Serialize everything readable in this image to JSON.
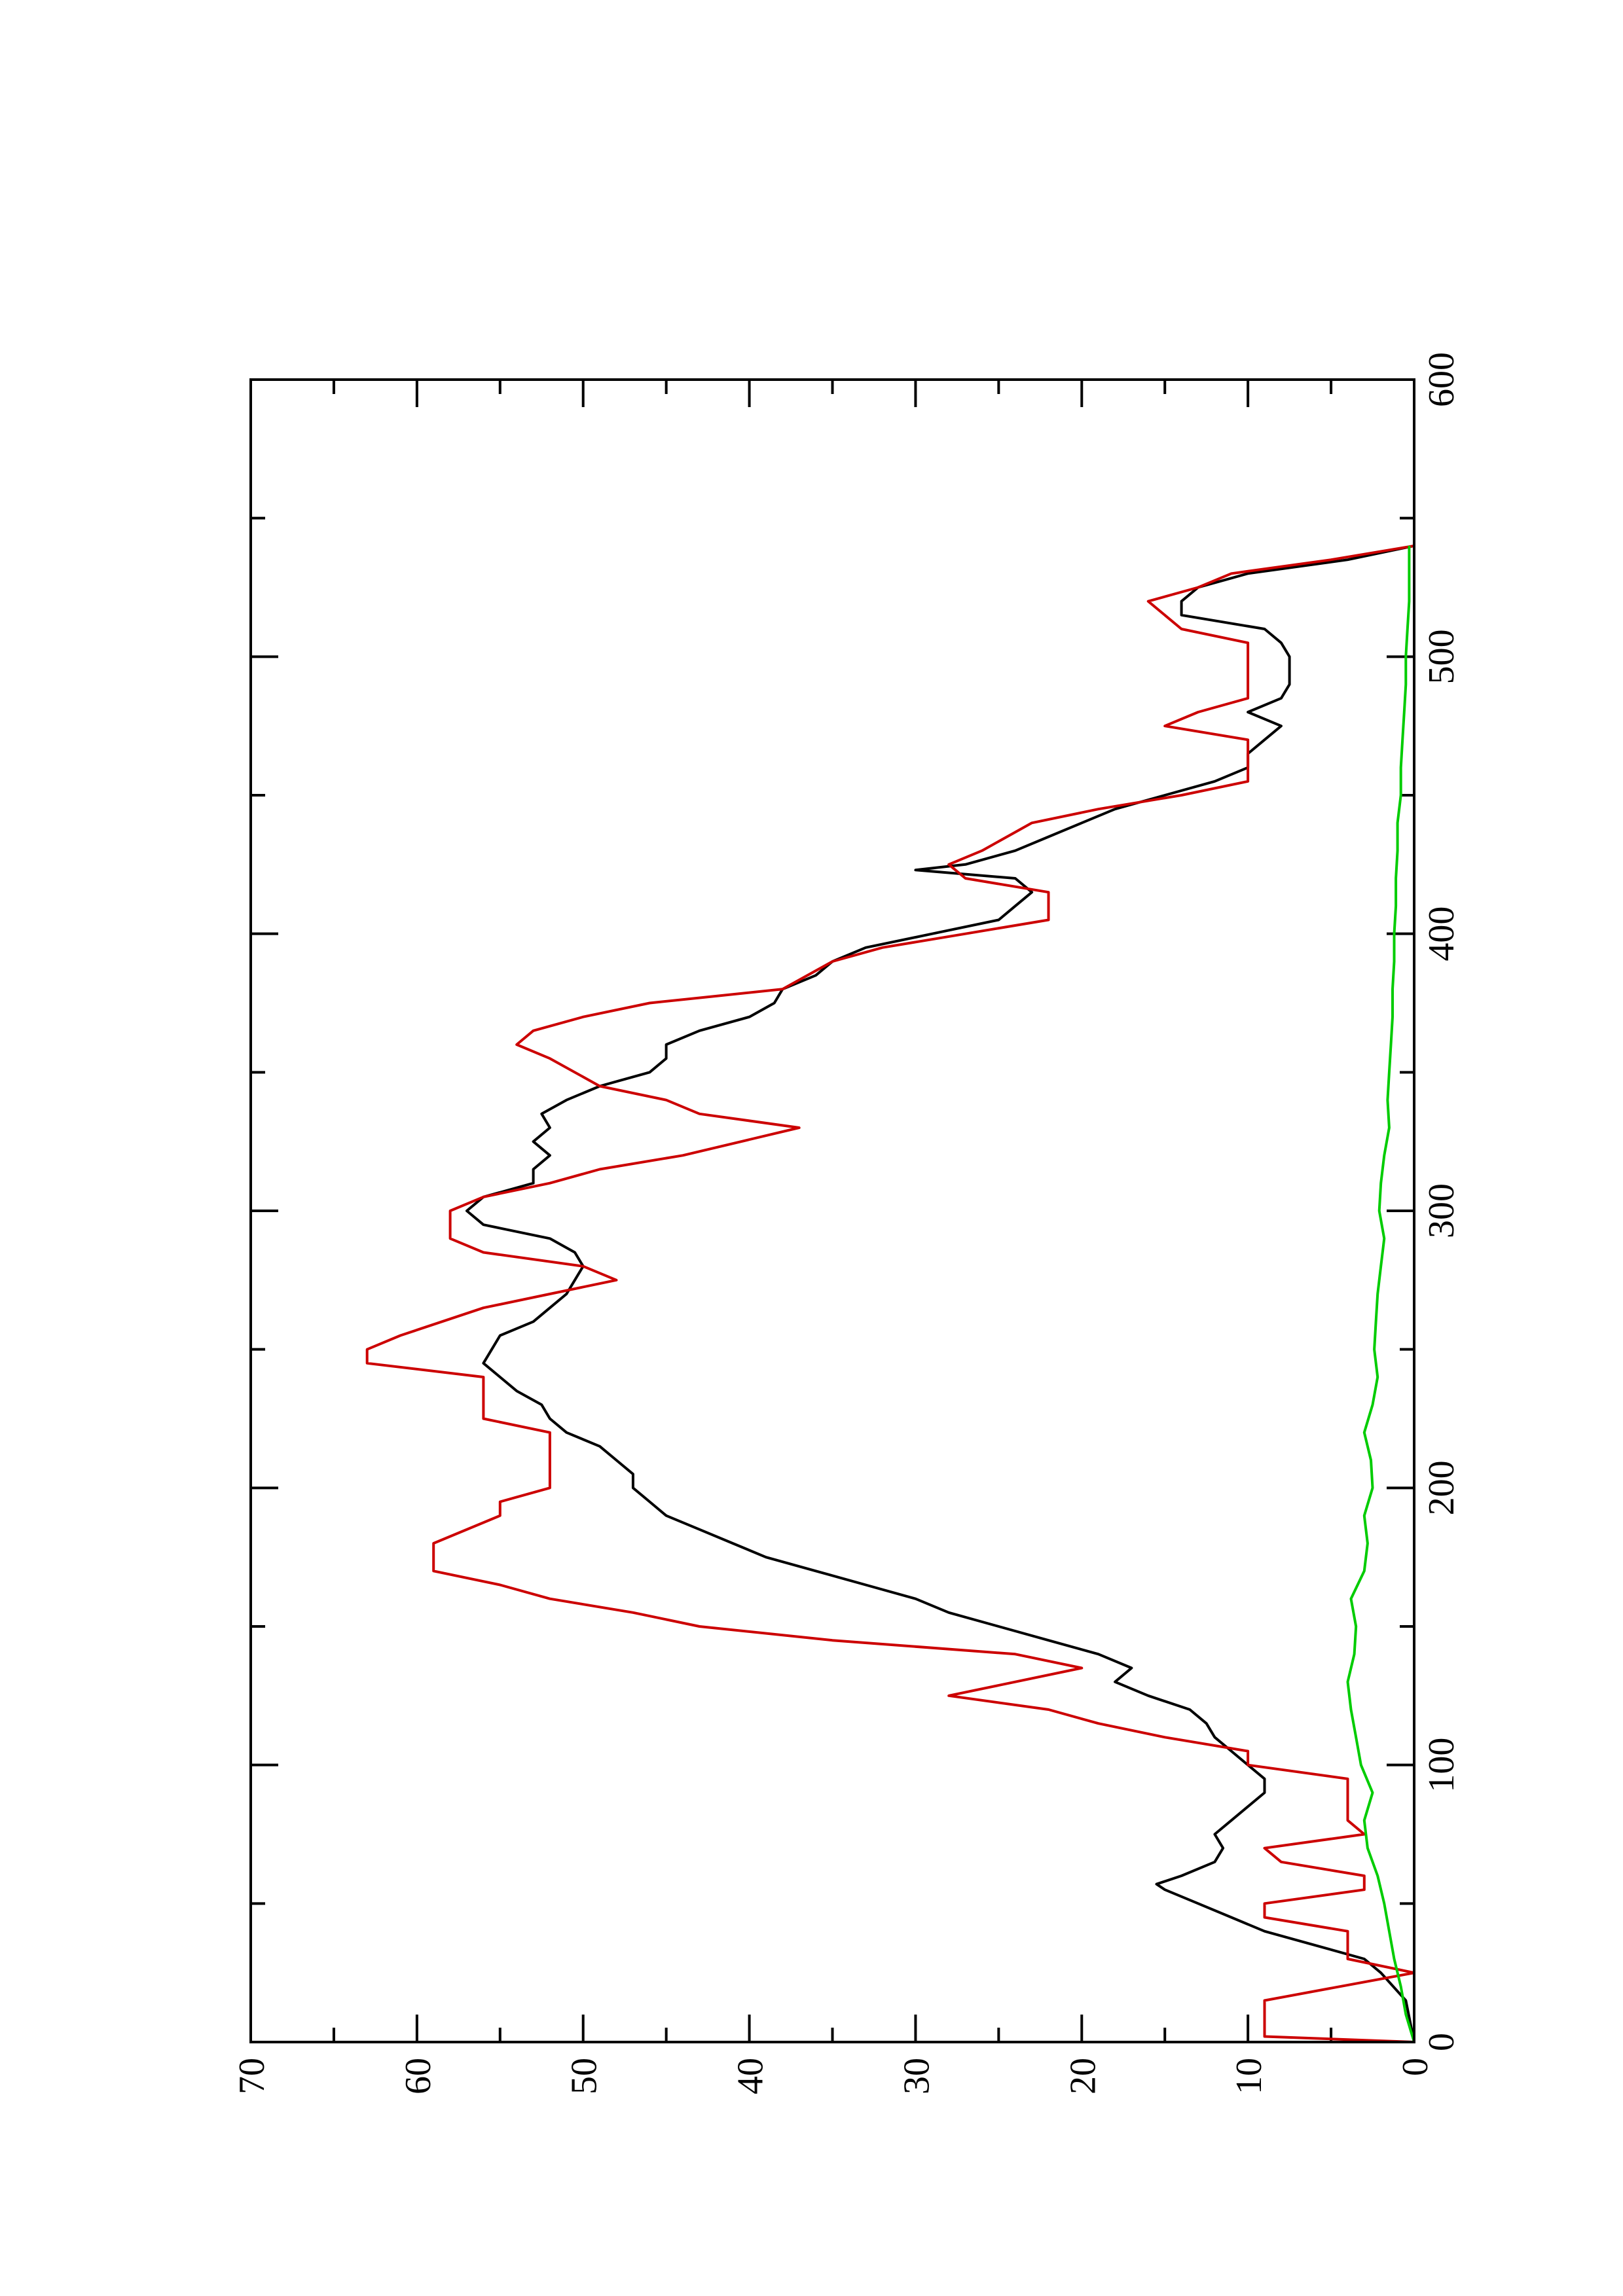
{
  "chart_data": {
    "type": "line",
    "title": "",
    "xlabel": "",
    "ylabel": "",
    "orientation": "rotated 90 degrees counter-clockwise",
    "xlim": [
      0,
      600
    ],
    "ylim": [
      0,
      70
    ],
    "x_ticks": [
      0,
      100,
      200,
      300,
      400,
      500,
      600
    ],
    "y_ticks": [
      0,
      10,
      20,
      30,
      40,
      50,
      60,
      70
    ],
    "x_tick_labels": [
      "0",
      "100",
      "200",
      "300",
      "400",
      "500",
      "600"
    ],
    "y_tick_labels": [
      "0",
      "10",
      "20",
      "30",
      "40",
      "50",
      "60",
      "70"
    ],
    "grid": false,
    "legend": "none",
    "series": [
      {
        "color": "#000000",
        "points": [
          [
            0,
            0
          ],
          [
            15,
            0.5
          ],
          [
            25,
            2
          ],
          [
            30,
            3
          ],
          [
            35,
            6
          ],
          [
            40,
            9
          ],
          [
            45,
            11
          ],
          [
            50,
            13
          ],
          [
            55,
            15
          ],
          [
            57,
            15.5
          ],
          [
            60,
            14
          ],
          [
            65,
            12
          ],
          [
            70,
            11.5
          ],
          [
            75,
            12
          ],
          [
            80,
            11
          ],
          [
            85,
            10
          ],
          [
            90,
            9
          ],
          [
            95,
            9
          ],
          [
            100,
            10
          ],
          [
            105,
            11
          ],
          [
            110,
            12
          ],
          [
            115,
            12.5
          ],
          [
            120,
            13.5
          ],
          [
            125,
            16
          ],
          [
            130,
            18
          ],
          [
            135,
            17
          ],
          [
            140,
            19
          ],
          [
            145,
            22
          ],
          [
            150,
            25
          ],
          [
            155,
            28
          ],
          [
            160,
            30
          ],
          [
            165,
            33
          ],
          [
            170,
            36
          ],
          [
            175,
            39
          ],
          [
            180,
            41
          ],
          [
            185,
            43
          ],
          [
            190,
            45
          ],
          [
            195,
            46
          ],
          [
            200,
            47
          ],
          [
            205,
            47
          ],
          [
            210,
            48
          ],
          [
            215,
            49
          ],
          [
            220,
            51
          ],
          [
            225,
            52
          ],
          [
            230,
            52.5
          ],
          [
            235,
            54
          ],
          [
            240,
            55
          ],
          [
            245,
            56
          ],
          [
            250,
            55.5
          ],
          [
            255,
            55
          ],
          [
            260,
            53
          ],
          [
            265,
            52
          ],
          [
            270,
            51
          ],
          [
            275,
            50.5
          ],
          [
            280,
            50
          ],
          [
            285,
            50.5
          ],
          [
            290,
            52
          ],
          [
            295,
            56
          ],
          [
            300,
            57
          ],
          [
            305,
            56
          ],
          [
            310,
            53
          ],
          [
            315,
            53
          ],
          [
            320,
            52
          ],
          [
            325,
            53
          ],
          [
            330,
            52
          ],
          [
            335,
            52.5
          ],
          [
            340,
            51
          ],
          [
            345,
            49
          ],
          [
            350,
            46
          ],
          [
            355,
            45
          ],
          [
            360,
            45
          ],
          [
            365,
            43
          ],
          [
            370,
            40
          ],
          [
            375,
            38.5
          ],
          [
            380,
            38
          ],
          [
            385,
            36
          ],
          [
            390,
            35
          ],
          [
            395,
            33
          ],
          [
            400,
            29
          ],
          [
            405,
            25
          ],
          [
            410,
            24
          ],
          [
            415,
            23
          ],
          [
            420,
            24
          ],
          [
            423,
            30
          ],
          [
            425,
            27
          ],
          [
            430,
            24
          ],
          [
            435,
            22
          ],
          [
            440,
            20
          ],
          [
            445,
            18
          ],
          [
            450,
            15
          ],
          [
            455,
            12
          ],
          [
            460,
            10
          ],
          [
            465,
            10
          ],
          [
            470,
            9
          ],
          [
            475,
            8
          ],
          [
            480,
            10
          ],
          [
            485,
            8
          ],
          [
            490,
            7.5
          ],
          [
            495,
            7.5
          ],
          [
            500,
            7.5
          ],
          [
            505,
            8
          ],
          [
            510,
            9
          ],
          [
            515,
            14
          ],
          [
            520,
            14
          ],
          [
            525,
            13
          ],
          [
            530,
            10
          ],
          [
            535,
            4
          ],
          [
            540,
            0
          ]
        ]
      },
      {
        "color": "#cc0000",
        "points": [
          [
            0,
            0
          ],
          [
            2,
            9
          ],
          [
            15,
            9
          ],
          [
            25,
            0
          ],
          [
            30,
            4
          ],
          [
            40,
            4
          ],
          [
            45,
            9
          ],
          [
            50,
            9
          ],
          [
            55,
            3
          ],
          [
            60,
            3
          ],
          [
            65,
            8
          ],
          [
            70,
            9
          ],
          [
            75,
            3
          ],
          [
            80,
            4
          ],
          [
            90,
            4
          ],
          [
            95,
            4
          ],
          [
            100,
            10
          ],
          [
            105,
            10
          ],
          [
            110,
            15
          ],
          [
            115,
            19
          ],
          [
            120,
            22
          ],
          [
            125,
            28
          ],
          [
            130,
            24
          ],
          [
            135,
            20
          ],
          [
            140,
            24
          ],
          [
            145,
            35
          ],
          [
            150,
            43
          ],
          [
            155,
            47
          ],
          [
            160,
            52
          ],
          [
            165,
            55
          ],
          [
            170,
            59
          ],
          [
            180,
            59
          ],
          [
            190,
            55
          ],
          [
            195,
            55
          ],
          [
            200,
            52
          ],
          [
            220,
            52
          ],
          [
            225,
            56
          ],
          [
            240,
            56
          ],
          [
            245,
            63
          ],
          [
            250,
            63
          ],
          [
            255,
            61
          ],
          [
            265,
            56
          ],
          [
            270,
            52
          ],
          [
            275,
            48
          ],
          [
            280,
            50
          ],
          [
            285,
            56
          ],
          [
            290,
            58
          ],
          [
            300,
            58
          ],
          [
            305,
            56
          ],
          [
            310,
            52
          ],
          [
            315,
            49
          ],
          [
            320,
            44
          ],
          [
            330,
            37
          ],
          [
            335,
            43
          ],
          [
            340,
            45
          ],
          [
            345,
            49
          ],
          [
            355,
            52
          ],
          [
            360,
            54
          ],
          [
            365,
            53
          ],
          [
            370,
            50
          ],
          [
            375,
            46
          ],
          [
            380,
            38
          ],
          [
            390,
            35
          ],
          [
            395,
            32
          ],
          [
            400,
            27
          ],
          [
            405,
            22
          ],
          [
            410,
            22
          ],
          [
            415,
            22
          ],
          [
            420,
            27
          ],
          [
            425,
            28
          ],
          [
            430,
            26
          ],
          [
            440,
            23
          ],
          [
            445,
            19
          ],
          [
            450,
            14
          ],
          [
            455,
            10
          ],
          [
            460,
            10
          ],
          [
            470,
            10
          ],
          [
            475,
            15
          ],
          [
            480,
            13
          ],
          [
            485,
            10
          ],
          [
            490,
            10
          ],
          [
            500,
            10
          ],
          [
            505,
            10
          ],
          [
            510,
            14
          ],
          [
            520,
            16
          ],
          [
            525,
            13
          ],
          [
            530,
            11
          ],
          [
            535,
            5
          ],
          [
            540,
            0
          ]
        ]
      },
      {
        "color": "#00cc00",
        "points": [
          [
            0,
            0
          ],
          [
            10,
            0.5
          ],
          [
            20,
            0.8
          ],
          [
            30,
            1.2
          ],
          [
            40,
            1.5
          ],
          [
            50,
            1.8
          ],
          [
            60,
            2.2
          ],
          [
            70,
            2.8
          ],
          [
            80,
            3
          ],
          [
            90,
            2.5
          ],
          [
            100,
            3.2
          ],
          [
            110,
            3.5
          ],
          [
            120,
            3.8
          ],
          [
            130,
            4
          ],
          [
            140,
            3.6
          ],
          [
            150,
            3.5
          ],
          [
            160,
            3.8
          ],
          [
            170,
            3
          ],
          [
            180,
            2.8
          ],
          [
            190,
            3
          ],
          [
            200,
            2.5
          ],
          [
            210,
            2.6
          ],
          [
            220,
            3
          ],
          [
            230,
            2.5
          ],
          [
            240,
            2.2
          ],
          [
            250,
            2.4
          ],
          [
            260,
            2.3
          ],
          [
            270,
            2.2
          ],
          [
            280,
            2
          ],
          [
            290,
            1.8
          ],
          [
            300,
            2.1
          ],
          [
            310,
            2
          ],
          [
            320,
            1.8
          ],
          [
            330,
            1.5
          ],
          [
            340,
            1.6
          ],
          [
            350,
            1.5
          ],
          [
            360,
            1.4
          ],
          [
            370,
            1.3
          ],
          [
            380,
            1.3
          ],
          [
            390,
            1.2
          ],
          [
            400,
            1.2
          ],
          [
            410,
            1.1
          ],
          [
            420,
            1.1
          ],
          [
            430,
            1
          ],
          [
            440,
            1
          ],
          [
            450,
            0.8
          ],
          [
            460,
            0.8
          ],
          [
            470,
            0.7
          ],
          [
            480,
            0.6
          ],
          [
            490,
            0.5
          ],
          [
            500,
            0.5
          ],
          [
            510,
            0.4
          ],
          [
            520,
            0.3
          ],
          [
            530,
            0.3
          ],
          [
            540,
            0.3
          ]
        ]
      }
    ]
  }
}
